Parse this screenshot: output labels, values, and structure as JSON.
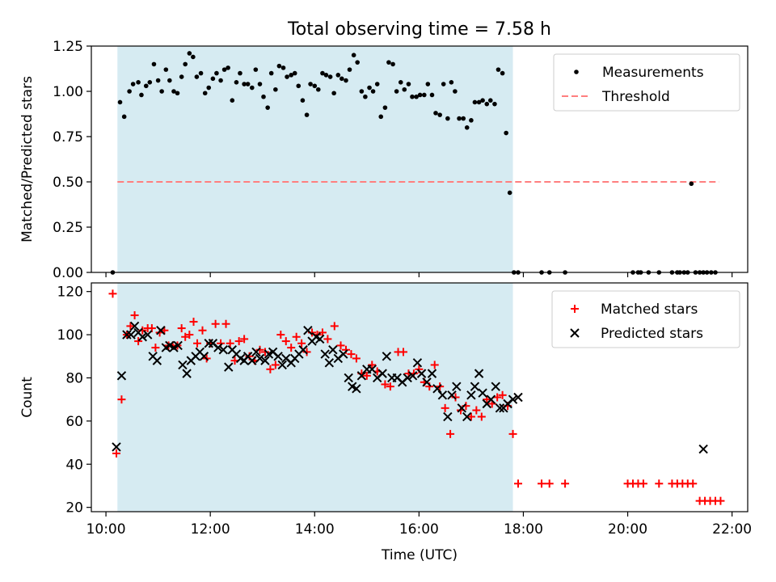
{
  "figure_title": "Total observing time = 7.58 h",
  "colors": {
    "shade": "#add8e6",
    "threshold": "#ff7f7f",
    "matched": "#ff0000",
    "predicted": "#000000"
  },
  "x_axis": {
    "label": "Time (UTC)",
    "ticks": [
      "10:00",
      "12:00",
      "14:00",
      "16:00",
      "18:00",
      "20:00",
      "22:00"
    ],
    "tick_hours": [
      10,
      12,
      14,
      16,
      18,
      20,
      22
    ],
    "range_hours": [
      9.72,
      22.3
    ]
  },
  "chart_data": [
    {
      "type": "scatter",
      "title": "",
      "ylabel": "Matched/Predicted stars",
      "ylim": [
        0,
        1.25
      ],
      "yticks": [
        "0.00",
        "0.25",
        "0.50",
        "0.75",
        "1.00",
        "1.25"
      ],
      "yticks_values": [
        0,
        0.25,
        0.5,
        0.75,
        1.0,
        1.25
      ],
      "observing_window_hours": [
        10.22,
        17.8
      ],
      "legend": {
        "placement": "top-right",
        "entries": [
          "Measurements",
          "Threshold"
        ]
      },
      "threshold": {
        "name": "Threshold",
        "y": 0.5,
        "x_range_hours": [
          10.22,
          21.75
        ]
      },
      "series": [
        {
          "name": "Measurements",
          "x_hours": [
            10.13,
            10.27,
            10.35,
            10.45,
            10.52,
            10.62,
            10.68,
            10.77,
            10.84,
            10.92,
            11.0,
            11.07,
            11.15,
            11.22,
            11.3,
            11.37,
            11.45,
            11.52,
            11.6,
            11.67,
            11.74,
            11.82,
            11.9,
            11.97,
            12.05,
            12.12,
            12.2,
            12.27,
            12.34,
            12.42,
            12.5,
            12.57,
            12.65,
            12.72,
            12.8,
            12.87,
            12.95,
            13.02,
            13.1,
            13.17,
            13.25,
            13.32,
            13.4,
            13.47,
            13.55,
            13.62,
            13.69,
            13.77,
            13.85,
            13.92,
            14.0,
            14.07,
            14.15,
            14.22,
            14.3,
            14.37,
            14.45,
            14.52,
            14.6,
            14.67,
            14.75,
            14.82,
            14.9,
            14.97,
            15.05,
            15.12,
            15.2,
            15.27,
            15.35,
            15.42,
            15.5,
            15.57,
            15.65,
            15.72,
            15.8,
            15.87,
            15.95,
            16.02,
            16.1,
            16.17,
            16.25,
            16.32,
            16.4,
            16.47,
            16.55,
            16.62,
            16.69,
            16.77,
            16.85,
            16.92,
            17.0,
            17.07,
            17.15,
            17.22,
            17.3,
            17.37,
            17.45,
            17.52,
            17.6,
            17.67,
            17.74,
            17.82,
            17.9,
            18.35,
            18.5,
            18.8,
            20.1,
            20.2,
            20.25,
            20.4,
            20.6,
            20.85,
            20.95,
            21.0,
            21.08,
            21.15,
            21.22,
            21.3,
            21.38,
            21.45,
            21.52,
            21.6,
            21.68
          ],
          "values": [
            0.0,
            0.94,
            0.86,
            1.0,
            1.04,
            1.05,
            0.98,
            1.03,
            1.05,
            1.15,
            1.06,
            1.0,
            1.12,
            1.06,
            1.0,
            0.99,
            1.08,
            1.15,
            1.21,
            1.19,
            1.08,
            1.1,
            0.99,
            1.02,
            1.07,
            1.1,
            1.06,
            1.12,
            1.13,
            0.95,
            1.05,
            1.1,
            1.04,
            1.04,
            1.02,
            1.12,
            1.04,
            0.97,
            0.91,
            1.1,
            1.01,
            1.14,
            1.13,
            1.08,
            1.09,
            1.1,
            1.03,
            0.95,
            0.87,
            1.04,
            1.03,
            1.01,
            1.1,
            1.09,
            1.08,
            0.99,
            1.09,
            1.07,
            1.06,
            1.12,
            1.2,
            1.16,
            1.0,
            0.97,
            1.02,
            1.0,
            1.04,
            0.86,
            0.91,
            1.16,
            1.15,
            1.0,
            1.05,
            1.01,
            1.04,
            0.97,
            0.97,
            0.98,
            0.98,
            1.04,
            0.98,
            0.88,
            0.87,
            1.04,
            0.85,
            1.05,
            1.0,
            0.85,
            0.85,
            0.8,
            0.84,
            0.94,
            0.94,
            0.95,
            0.93,
            0.95,
            0.93,
            1.12,
            1.1,
            0.77,
            0.44,
            0.0,
            0.0,
            0.0,
            0.0,
            0.0,
            0.0,
            0.0,
            0.0,
            0.0,
            0.0,
            0.0,
            0.0,
            0.0,
            0.0,
            0.0,
            0.49,
            0.0,
            0.0,
            0.0,
            0.0,
            0.0,
            0.0
          ]
        }
      ]
    },
    {
      "type": "scatter",
      "title": "",
      "xlabel": "Time (UTC)",
      "ylabel": "Count",
      "ylim": [
        18,
        124
      ],
      "yticks": [
        "20",
        "40",
        "60",
        "80",
        "100",
        "120"
      ],
      "yticks_values": [
        20,
        40,
        60,
        80,
        100,
        120
      ],
      "observing_window_hours": [
        10.22,
        17.8
      ],
      "legend": {
        "placement": "top-right",
        "entries": [
          "Matched stars",
          "Predicted stars"
        ]
      },
      "series": [
        {
          "name": "Matched stars",
          "x_hours": [
            10.13,
            10.2,
            10.3,
            10.4,
            10.47,
            10.55,
            10.62,
            10.7,
            10.8,
            10.88,
            10.95,
            11.03,
            11.12,
            11.2,
            11.28,
            11.37,
            11.45,
            11.52,
            11.6,
            11.68,
            11.75,
            11.85,
            11.93,
            12.0,
            12.1,
            12.2,
            12.3,
            12.38,
            12.47,
            12.55,
            12.65,
            12.75,
            12.85,
            12.95,
            13.05,
            13.15,
            13.25,
            13.35,
            13.45,
            13.55,
            13.65,
            13.75,
            13.85,
            13.95,
            14.05,
            14.15,
            14.25,
            14.38,
            14.5,
            14.6,
            14.7,
            14.8,
            14.9,
            15.0,
            15.1,
            15.2,
            15.35,
            15.45,
            15.6,
            15.7,
            15.8,
            15.9,
            16.0,
            16.1,
            16.2,
            16.3,
            16.4,
            16.5,
            16.6,
            16.7,
            16.8,
            16.9,
            17.0,
            17.1,
            17.2,
            17.3,
            17.4,
            17.5,
            17.6,
            17.7,
            17.8,
            17.9,
            18.35,
            18.5,
            18.8,
            20.0,
            20.1,
            20.2,
            20.3,
            20.6,
            20.85,
            20.95,
            21.05,
            21.15,
            21.25,
            21.38,
            21.48,
            21.58,
            21.68,
            21.78
          ],
          "values": [
            119,
            45,
            70,
            100,
            104,
            109,
            97,
            102,
            103,
            103,
            94,
            101,
            102,
            95,
            95,
            95,
            103,
            99,
            100,
            106,
            96,
            102,
            89,
            96,
            105,
            96,
            105,
            96,
            88,
            97,
            98,
            90,
            88,
            93,
            92,
            84,
            86,
            100,
            97,
            94,
            99,
            96,
            92,
            101,
            100,
            101,
            98,
            104,
            95,
            93,
            91,
            89,
            82,
            81,
            86,
            83,
            77,
            76,
            92,
            92,
            82,
            82,
            84,
            78,
            76,
            86,
            76,
            66,
            54,
            71,
            65,
            67,
            62,
            65,
            62,
            70,
            68,
            71,
            72,
            67,
            54,
            31,
            31,
            31,
            31,
            31,
            31,
            31,
            31,
            31,
            31,
            31,
            31,
            31,
            31,
            23,
            23,
            23,
            23,
            23
          ]
        },
        {
          "name": "Predicted stars",
          "x_hours": [
            10.2,
            10.3,
            10.4,
            10.48,
            10.55,
            10.62,
            10.7,
            10.8,
            10.9,
            10.98,
            11.05,
            11.15,
            11.22,
            11.3,
            11.38,
            11.47,
            11.55,
            11.63,
            11.72,
            11.8,
            11.88,
            11.97,
            12.05,
            12.15,
            12.25,
            12.35,
            12.42,
            12.5,
            12.58,
            12.65,
            12.72,
            12.8,
            12.88,
            12.95,
            13.05,
            13.12,
            13.2,
            13.3,
            13.38,
            13.45,
            13.55,
            13.62,
            13.7,
            13.78,
            13.87,
            13.95,
            14.03,
            14.1,
            14.2,
            14.28,
            14.35,
            14.45,
            14.55,
            14.65,
            14.72,
            14.8,
            14.9,
            15.0,
            15.1,
            15.2,
            15.3,
            15.38,
            15.48,
            15.58,
            15.68,
            15.78,
            15.88,
            15.97,
            16.05,
            16.15,
            16.25,
            16.35,
            16.45,
            16.55,
            16.63,
            16.72,
            16.82,
            16.92,
            17.0,
            17.07,
            17.15,
            17.22,
            17.3,
            17.38,
            17.47,
            17.55,
            17.62,
            17.7,
            17.8,
            17.9,
            21.45
          ],
          "values": [
            48,
            81,
            100,
            100,
            104,
            101,
            99,
            100,
            90,
            88,
            102,
            94,
            95,
            94,
            95,
            86,
            82,
            88,
            90,
            92,
            90,
            96,
            96,
            94,
            93,
            85,
            93,
            91,
            89,
            88,
            90,
            88,
            92,
            89,
            88,
            91,
            92,
            90,
            86,
            89,
            87,
            89,
            91,
            93,
            102,
            97,
            99,
            98,
            91,
            87,
            93,
            89,
            91,
            80,
            76,
            75,
            81,
            84,
            84,
            80,
            82,
            90,
            80,
            80,
            78,
            80,
            81,
            87,
            82,
            78,
            82,
            75,
            72,
            62,
            72,
            76,
            66,
            62,
            72,
            76,
            82,
            73,
            68,
            70,
            76,
            66,
            66,
            68,
            70,
            71,
            47
          ]
        }
      ]
    }
  ]
}
